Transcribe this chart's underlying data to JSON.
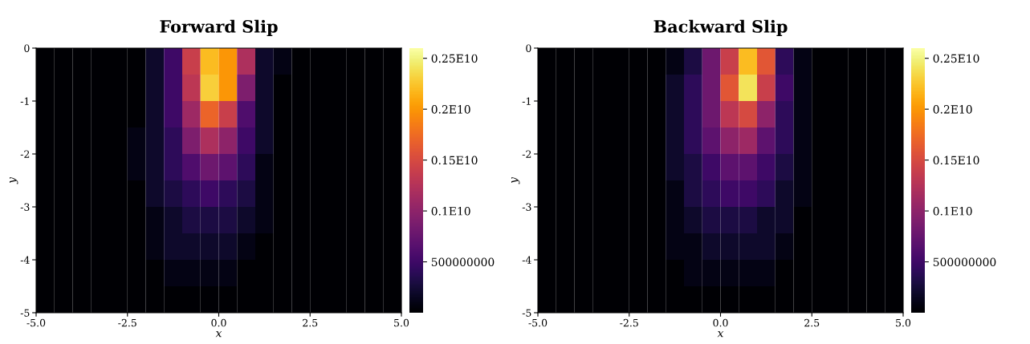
{
  "chart_data": [
    {
      "type": "heatmap",
      "title": "Forward Slip",
      "xlabel": "x",
      "ylabel": "y",
      "xlim": [
        -5.0,
        5.0
      ],
      "ylim": [
        -5,
        0
      ],
      "xticks": [
        {
          "value": -5,
          "label": "-5.0"
        },
        {
          "value": -2.5,
          "label": "-2.5"
        },
        {
          "value": 0,
          "label": "0.0"
        },
        {
          "value": 2.5,
          "label": "2.5"
        },
        {
          "value": 5,
          "label": "5.0"
        }
      ],
      "yticks": [
        -5,
        -4,
        -3,
        -2,
        -1,
        0
      ],
      "clim": [
        0,
        2600000000.0
      ],
      "cticks": [
        {
          "value": 500000000.0,
          "label": "500000000"
        },
        {
          "value": 1000000000.0,
          "label": "0.1E10"
        },
        {
          "value": 1500000000.0,
          "label": "0.15E10"
        },
        {
          "value": 2000000000.0,
          "label": "0.2E10"
        },
        {
          "value": 2500000000.0,
          "label": "0.25E10"
        }
      ],
      "cells": [
        [
          0,
          0,
          0,
          0,
          0,
          0,
          200000000.0,
          500000000.0,
          1400000000.0,
          2200000000.0,
          2000000000.0,
          1200000000.0,
          200000000.0,
          100000000.0,
          0,
          0,
          0,
          0,
          0,
          0
        ],
        [
          0,
          0,
          0,
          0,
          0,
          0,
          200000000.0,
          500000000.0,
          1300000000.0,
          2300000000.0,
          2000000000.0,
          900000000.0,
          200000000.0,
          0,
          0,
          0,
          0,
          0,
          0,
          0
        ],
        [
          0,
          0,
          0,
          0,
          0,
          0,
          200000000.0,
          500000000.0,
          1100000000.0,
          1700000000.0,
          1400000000.0,
          600000000.0,
          200000000.0,
          0,
          0,
          0,
          0,
          0,
          0,
          0
        ],
        [
          0,
          0,
          0,
          0,
          0,
          100000000.0,
          200000000.0,
          400000000.0,
          900000000.0,
          1200000000.0,
          1000000000.0,
          500000000.0,
          200000000.0,
          0,
          0,
          0,
          0,
          0,
          0,
          0
        ],
        [
          0,
          0,
          0,
          0,
          0,
          100000000.0,
          200000000.0,
          400000000.0,
          600000000.0,
          800000000.0,
          700000000.0,
          400000000.0,
          100000000.0,
          0,
          0,
          0,
          0,
          0,
          0,
          0
        ],
        [
          0,
          0,
          0,
          0,
          0,
          0,
          200000000.0,
          300000000.0,
          400000000.0,
          500000000.0,
          400000000.0,
          300000000.0,
          100000000.0,
          0,
          0,
          0,
          0,
          0,
          0,
          0
        ],
        [
          0,
          0,
          0,
          0,
          0,
          0,
          100000000.0,
          200000000.0,
          300000000.0,
          300000000.0,
          300000000.0,
          200000000.0,
          100000000.0,
          0,
          0,
          0,
          0,
          0,
          0,
          0
        ],
        [
          0,
          0,
          0,
          0,
          0,
          0,
          100000000.0,
          200000000.0,
          200000000.0,
          200000000.0,
          200000000.0,
          100000000.0,
          0,
          0,
          0,
          0,
          0,
          0,
          0,
          0
        ],
        [
          0,
          0,
          0,
          0,
          0,
          0,
          0,
          100000000.0,
          100000000.0,
          100000000.0,
          100000000.0,
          0,
          0,
          0,
          0,
          0,
          0,
          0,
          0,
          0
        ],
        [
          0,
          0,
          0,
          0,
          0,
          0,
          0,
          0,
          0,
          0,
          0,
          0,
          0,
          0,
          0,
          0,
          0,
          0,
          0,
          0
        ]
      ]
    },
    {
      "type": "heatmap",
      "title": "Backward Slip",
      "xlabel": "x",
      "ylabel": "y",
      "xlim": [
        -5.0,
        5.0
      ],
      "ylim": [
        -5,
        0
      ],
      "xticks": [
        {
          "value": -5,
          "label": "-5.0"
        },
        {
          "value": -2.5,
          "label": "-2.5"
        },
        {
          "value": 0,
          "label": "0.0"
        },
        {
          "value": 2.5,
          "label": "2.5"
        },
        {
          "value": 5,
          "label": "5.0"
        }
      ],
      "yticks": [
        -5,
        -4,
        -3,
        -2,
        -1,
        0
      ],
      "clim": [
        0,
        2600000000.0
      ],
      "cticks": [
        {
          "value": 500000000.0,
          "label": "500000000"
        },
        {
          "value": 1000000000.0,
          "label": "0.1E10"
        },
        {
          "value": 1500000000.0,
          "label": "0.15E10"
        },
        {
          "value": 2000000000.0,
          "label": "0.2E10"
        },
        {
          "value": 2500000000.0,
          "label": "0.25E10"
        }
      ],
      "cells": [
        [
          0,
          0,
          0,
          0,
          0,
          0,
          0,
          100000000.0,
          300000000.0,
          800000000.0,
          1400000000.0,
          2200000000.0,
          1600000000.0,
          400000000.0,
          100000000.0,
          0,
          0,
          0,
          0,
          0
        ],
        [
          0,
          0,
          0,
          0,
          0,
          0,
          0,
          200000000.0,
          400000000.0,
          800000000.0,
          1600000000.0,
          2400000000.0,
          1400000000.0,
          500000000.0,
          100000000.0,
          0,
          0,
          0,
          0,
          0
        ],
        [
          0,
          0,
          0,
          0,
          0,
          0,
          0,
          200000000.0,
          400000000.0,
          800000000.0,
          1300000000.0,
          1500000000.0,
          1000000000.0,
          400000000.0,
          100000000.0,
          0,
          0,
          0,
          0,
          0
        ],
        [
          0,
          0,
          0,
          0,
          0,
          0,
          0,
          200000000.0,
          400000000.0,
          700000000.0,
          1000000000.0,
          1100000000.0,
          700000000.0,
          400000000.0,
          100000000.0,
          0,
          0,
          0,
          0,
          0
        ],
        [
          0,
          0,
          0,
          0,
          0,
          0,
          0,
          200000000.0,
          300000000.0,
          500000000.0,
          700000000.0,
          700000000.0,
          500000000.0,
          300000000.0,
          100000000.0,
          0,
          0,
          0,
          0,
          0
        ],
        [
          0,
          0,
          0,
          0,
          0,
          0,
          0,
          100000000.0,
          300000000.0,
          400000000.0,
          500000000.0,
          500000000.0,
          400000000.0,
          200000000.0,
          100000000.0,
          0,
          0,
          0,
          0,
          0
        ],
        [
          0,
          0,
          0,
          0,
          0,
          0,
          0,
          100000000.0,
          200000000.0,
          300000000.0,
          300000000.0,
          300000000.0,
          200000000.0,
          200000000.0,
          0,
          0,
          0,
          0,
          0,
          0
        ],
        [
          0,
          0,
          0,
          0,
          0,
          0,
          0,
          100000000.0,
          100000000.0,
          200000000.0,
          200000000.0,
          200000000.0,
          200000000.0,
          100000000.0,
          0,
          0,
          0,
          0,
          0,
          0
        ],
        [
          0,
          0,
          0,
          0,
          0,
          0,
          0,
          0,
          100000000.0,
          100000000.0,
          100000000.0,
          100000000.0,
          100000000.0,
          0,
          0,
          0,
          0,
          0,
          0,
          0
        ],
        [
          0,
          0,
          0,
          0,
          0,
          0,
          0,
          0,
          0,
          0,
          0,
          0,
          0,
          0,
          0,
          0,
          0,
          0,
          0,
          0
        ]
      ]
    }
  ]
}
